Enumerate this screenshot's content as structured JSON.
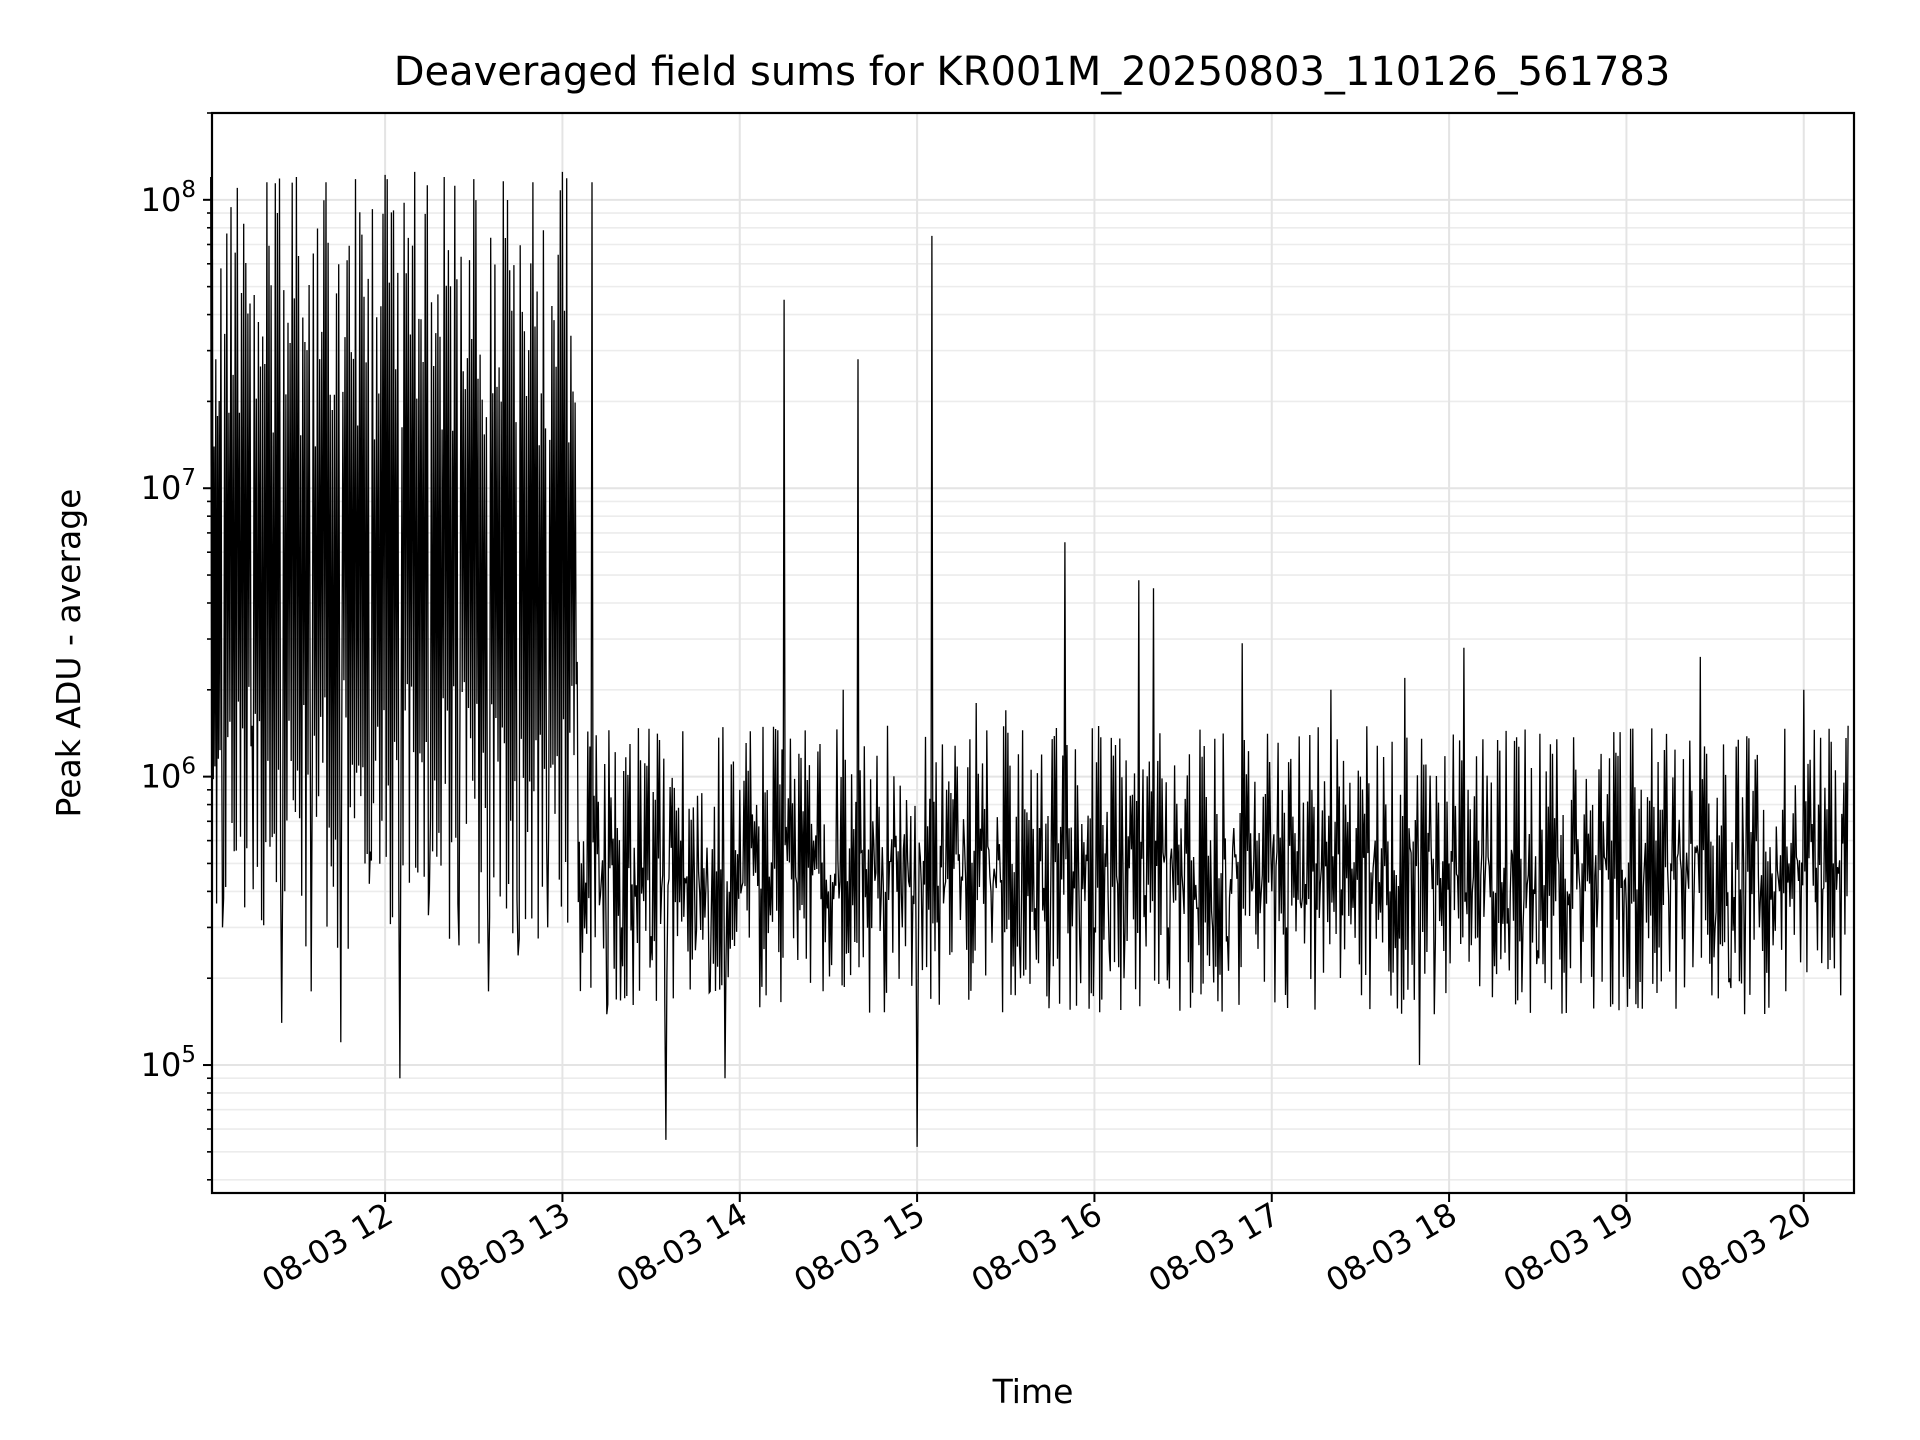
{
  "chart_data": {
    "type": "line",
    "title": "Deaveraged field sums for KR001M_20250803_110126_561783",
    "xlabel": "Time",
    "ylabel": "Peak ADU - average",
    "yscale": "log",
    "ylim": [
      36000,
      200000000
    ],
    "xlim": [
      "2025-08-03 11:01:26",
      "2025-08-03 20:17:00"
    ],
    "x_ticks": [
      {
        "value": "2025-08-03 12:00",
        "label": "08-03 12"
      },
      {
        "value": "2025-08-03 13:00",
        "label": "08-03 13"
      },
      {
        "value": "2025-08-03 14:00",
        "label": "08-03 14"
      },
      {
        "value": "2025-08-03 15:00",
        "label": "08-03 15"
      },
      {
        "value": "2025-08-03 16:00",
        "label": "08-03 16"
      },
      {
        "value": "2025-08-03 17:00",
        "label": "08-03 17"
      },
      {
        "value": "2025-08-03 18:00",
        "label": "08-03 18"
      },
      {
        "value": "2025-08-03 19:00",
        "label": "08-03 19"
      },
      {
        "value": "2025-08-03 20:00",
        "label": "08-03 20"
      }
    ],
    "y_ticks": [
      {
        "value": 100000,
        "label": "10^5"
      },
      {
        "value": 1000000,
        "label": "10^6"
      },
      {
        "value": 10000000,
        "label": "10^7"
      },
      {
        "value": 100000000,
        "label": "10^8"
      }
    ],
    "grid": true,
    "series": [
      {
        "color": "#000000",
        "x": [
          "2025-08-03 11:01",
          "2025-08-03 11:05",
          "2025-08-03 11:10",
          "2025-08-03 11:15",
          "2025-08-03 11:20",
          "2025-08-03 11:25",
          "2025-08-03 11:30",
          "2025-08-03 11:35",
          "2025-08-03 11:40",
          "2025-08-03 11:45",
          "2025-08-03 11:50",
          "2025-08-03 11:55",
          "2025-08-03 12:00",
          "2025-08-03 12:05",
          "2025-08-03 12:10",
          "2025-08-03 12:15",
          "2025-08-03 12:20",
          "2025-08-03 12:25",
          "2025-08-03 12:30",
          "2025-08-03 12:35",
          "2025-08-03 12:40",
          "2025-08-03 12:45",
          "2025-08-03 12:50",
          "2025-08-03 12:55",
          "2025-08-03 13:00",
          "2025-08-03 13:05",
          "2025-08-03 13:10",
          "2025-08-03 13:15",
          "2025-08-03 13:20",
          "2025-08-03 13:25",
          "2025-08-03 13:30",
          "2025-08-03 13:35",
          "2025-08-03 13:40",
          "2025-08-03 13:45",
          "2025-08-03 13:50",
          "2025-08-03 13:55",
          "2025-08-03 14:00",
          "2025-08-03 14:05",
          "2025-08-03 14:10",
          "2025-08-03 14:15",
          "2025-08-03 14:20",
          "2025-08-03 14:25",
          "2025-08-03 14:30",
          "2025-08-03 14:35",
          "2025-08-03 14:40",
          "2025-08-03 14:45",
          "2025-08-03 14:50",
          "2025-08-03 14:55",
          "2025-08-03 15:00",
          "2025-08-03 15:05",
          "2025-08-03 15:10",
          "2025-08-03 15:15",
          "2025-08-03 15:20",
          "2025-08-03 15:25",
          "2025-08-03 15:30",
          "2025-08-03 15:35",
          "2025-08-03 15:40",
          "2025-08-03 15:45",
          "2025-08-03 15:50",
          "2025-08-03 15:55",
          "2025-08-03 16:00",
          "2025-08-03 16:05",
          "2025-08-03 16:10",
          "2025-08-03 16:15",
          "2025-08-03 16:20",
          "2025-08-03 16:25",
          "2025-08-03 16:30",
          "2025-08-03 16:35",
          "2025-08-03 16:40",
          "2025-08-03 16:45",
          "2025-08-03 16:50",
          "2025-08-03 16:55",
          "2025-08-03 17:00",
          "2025-08-03 17:05",
          "2025-08-03 17:10",
          "2025-08-03 17:15",
          "2025-08-03 17:20",
          "2025-08-03 17:25",
          "2025-08-03 17:30",
          "2025-08-03 17:35",
          "2025-08-03 17:40",
          "2025-08-03 17:45",
          "2025-08-03 17:50",
          "2025-08-03 17:55",
          "2025-08-03 18:00",
          "2025-08-03 18:05",
          "2025-08-03 18:10",
          "2025-08-03 18:15",
          "2025-08-03 18:20",
          "2025-08-03 18:25",
          "2025-08-03 18:30",
          "2025-08-03 18:35",
          "2025-08-03 18:40",
          "2025-08-03 18:45",
          "2025-08-03 18:50",
          "2025-08-03 18:55",
          "2025-08-03 19:00",
          "2025-08-03 19:05",
          "2025-08-03 19:10",
          "2025-08-03 19:15",
          "2025-08-03 19:20",
          "2025-08-03 19:25",
          "2025-08-03 19:30",
          "2025-08-03 19:35",
          "2025-08-03 19:40",
          "2025-08-03 19:45",
          "2025-08-03 19:50",
          "2025-08-03 19:55",
          "2025-08-03 20:00",
          "2025-08-03 20:05",
          "2025-08-03 20:10",
          "2025-08-03 20:15"
        ],
        "y": [
          120000000,
          300000,
          110000000,
          1500000,
          115000000,
          140000,
          120000000,
          180000,
          115000000,
          120000,
          118000000,
          550000,
          122000000,
          90000,
          125000000,
          400000,
          120000000,
          260000,
          118000000,
          180000,
          116000000,
          240000,
          115000000,
          300000,
          125000000,
          2500000,
          115000000,
          150000,
          300000,
          420000,
          280000,
          55000,
          600000,
          250000,
          180000,
          90000,
          900000,
          700000,
          450000,
          45000000,
          1200000,
          600000,
          400000,
          2000000,
          28000000,
          700000,
          1500000,
          300000,
          52000,
          75000000,
          900000,
          450000,
          1800000,
          400000,
          1700000,
          200000,
          350000,
          250000,
          6500000,
          280000,
          300000,
          250000,
          200000,
          4800000,
          4500000,
          300000,
          400000,
          350000,
          300000,
          280000,
          2900000,
          600000,
          400000,
          300000,
          350000,
          500000,
          2000000,
          800000,
          1000000,
          600000,
          400000,
          2200000,
          100000,
          150000,
          500000,
          2800000,
          600000,
          400000,
          350000,
          300000,
          250000,
          1200000,
          400000,
          500000,
          300000,
          600000,
          350000,
          900000,
          600000,
          500000,
          400000,
          2600000,
          300000,
          200000,
          150000,
          300000,
          400000,
          500000,
          2000000,
          800000,
          500000,
          1500000
        ]
      }
    ]
  }
}
